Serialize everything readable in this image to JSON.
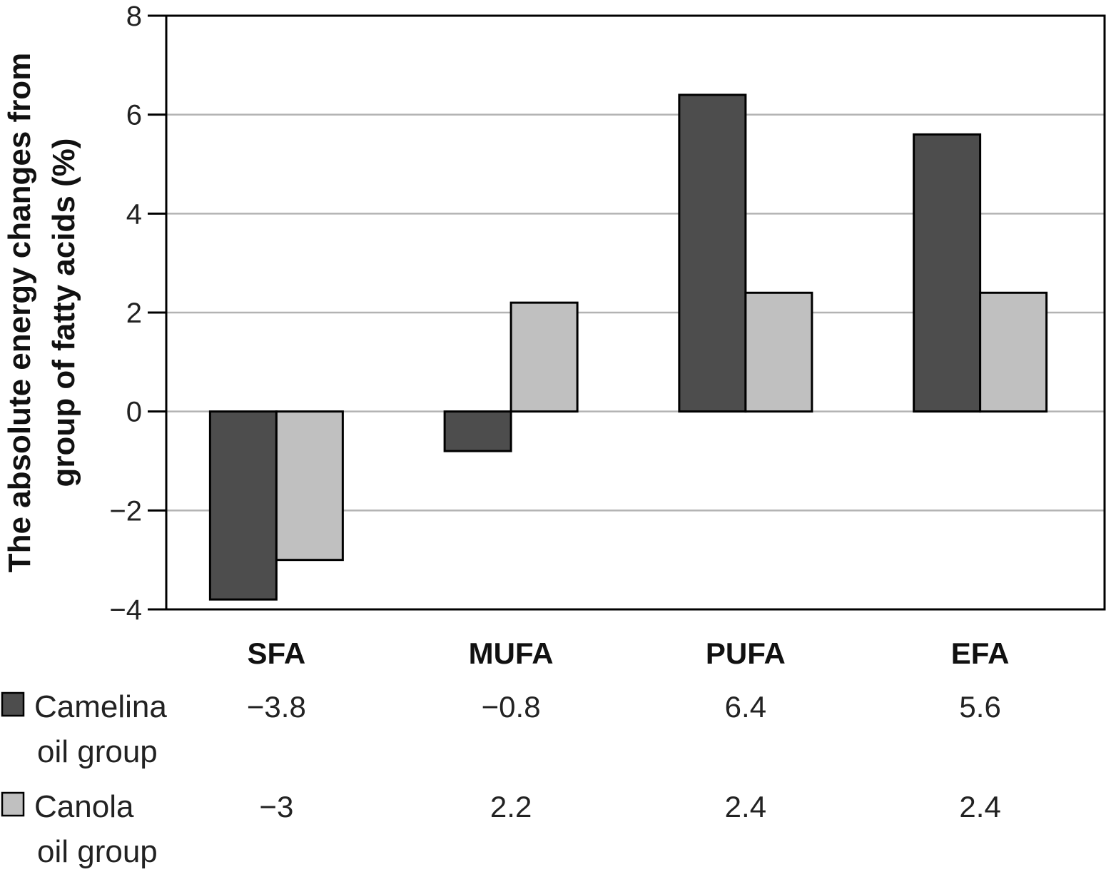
{
  "chart_data": {
    "type": "bar",
    "categories": [
      "SFA",
      "MUFA",
      "PUFA",
      "EFA"
    ],
    "series": [
      {
        "name_lines": [
          "Camelina",
          "oil group"
        ],
        "color": "#4d4d4d",
        "values": [
          -3.8,
          -0.8,
          6.4,
          5.6
        ],
        "value_labels": [
          "−3.8",
          "−0.8",
          "6.4",
          "5.6"
        ]
      },
      {
        "name_lines": [
          "Canola",
          "oil group"
        ],
        "color": "#c0c0c0",
        "values": [
          -3,
          2.2,
          2.4,
          2.4
        ],
        "value_labels": [
          "−3",
          "2.2",
          "2.4",
          "2.4"
        ]
      }
    ],
    "ylabel_lines": [
      "The absolute energy changes from",
      "group of fatty acids (%)"
    ],
    "ylim": [
      -4,
      8
    ],
    "yticks": [
      -4,
      -2,
      0,
      2,
      4,
      6,
      8
    ],
    "ytick_labels": [
      "−4",
      "−2",
      "0",
      "2",
      "4",
      "6",
      "8"
    ],
    "grid": true,
    "legend": "data-table-below"
  }
}
